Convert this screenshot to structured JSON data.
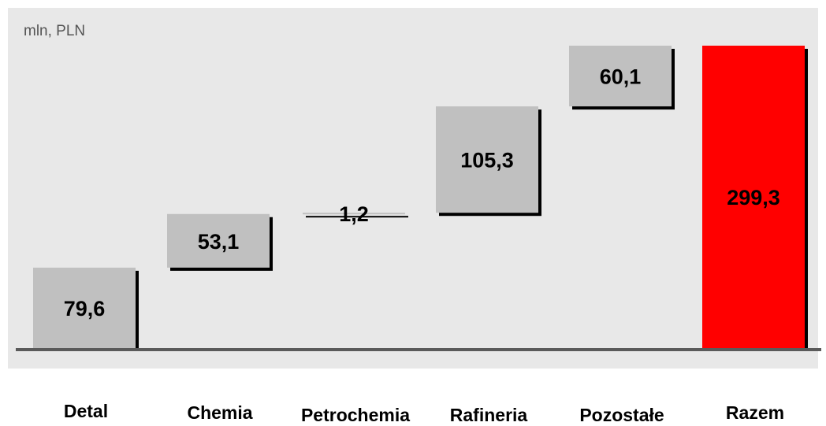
{
  "chart_data": {
    "type": "bar",
    "subtype": "waterfall",
    "unit_label": "mln, PLN",
    "categories": [
      "Detal",
      "Chemia",
      "Petrochemia",
      "Rafineria",
      "Pozostałe",
      "Razem"
    ],
    "values": [
      79.6,
      53.1,
      1.2,
      105.3,
      60.1,
      299.3
    ],
    "value_labels": [
      "79,6",
      "53,1",
      "1,2",
      "105,3",
      "60,1",
      "299,3"
    ],
    "total_index": 5,
    "ylim": [
      0,
      299.3
    ],
    "colors": {
      "plot_background": "#e8e8e8",
      "bar": "#c0c0c0",
      "total_bar": "#ff0000",
      "shadow": "#000000",
      "baseline": "#5a5a5a"
    }
  }
}
